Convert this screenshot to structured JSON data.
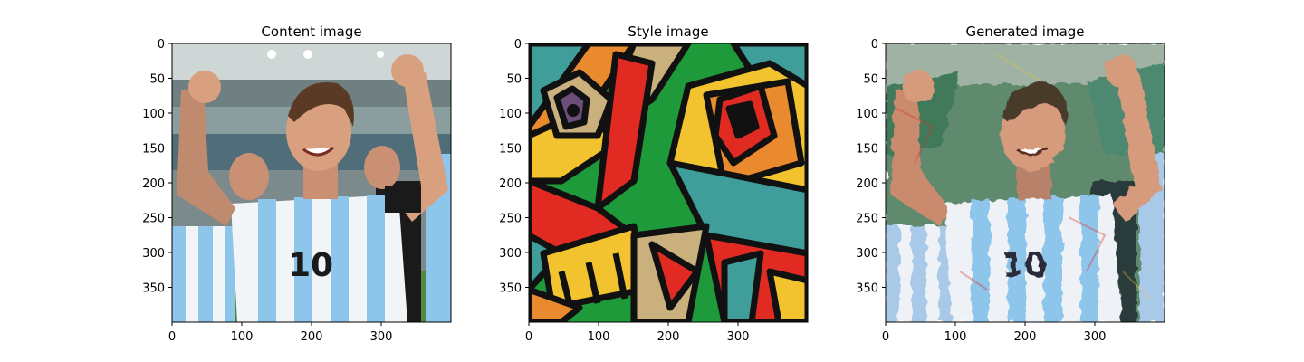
{
  "figure": {
    "panels": [
      {
        "title": "Content image",
        "content": "photo of a smiling soccer player with raised fists wearing a sky-blue and white striped number 10 jersey in a stadium"
      },
      {
        "title": "Style image",
        "content": "cubist abstract painting with bold black outlines; green, red, yellow, teal and orange angular shapes and a geometric eye"
      },
      {
        "title": "Generated image",
        "content": "the content photo re-rendered with the cubist painting's brushy textures and colors"
      }
    ]
  },
  "chart_data": [
    {
      "type": "image",
      "title": "Content image",
      "xlim": [
        0,
        400
      ],
      "ylim": [
        400,
        0
      ],
      "xticks": [
        0,
        100,
        200,
        300
      ],
      "yticks": [
        0,
        50,
        100,
        150,
        200,
        250,
        300,
        350
      ]
    },
    {
      "type": "image",
      "title": "Style image",
      "xlim": [
        0,
        400
      ],
      "ylim": [
        400,
        0
      ],
      "xticks": [
        0,
        100,
        200,
        300
      ],
      "yticks": [
        0,
        50,
        100,
        150,
        200,
        250,
        300,
        350
      ]
    },
    {
      "type": "image",
      "title": "Generated image",
      "xlim": [
        0,
        400
      ],
      "ylim": [
        400,
        0
      ],
      "xticks": [
        0,
        100,
        200,
        300
      ],
      "yticks": [
        0,
        50,
        100,
        150,
        200,
        250,
        300,
        350
      ]
    }
  ],
  "colors": {
    "jersey_blue": "#8ec5ea",
    "jersey_white": "#f2f5f8",
    "skin": "#d9a07f",
    "hair": "#5a3a24",
    "stadium_bg": "#7d8a8c",
    "pitch_green": "#4f8a3c",
    "style_black": "#111111",
    "style_green": "#1f9a3a",
    "style_red": "#e02a22",
    "style_yellow": "#f2c32e",
    "style_teal": "#3f9d9a",
    "style_orange": "#e98a2e",
    "style_beige": "#c9b07c"
  }
}
